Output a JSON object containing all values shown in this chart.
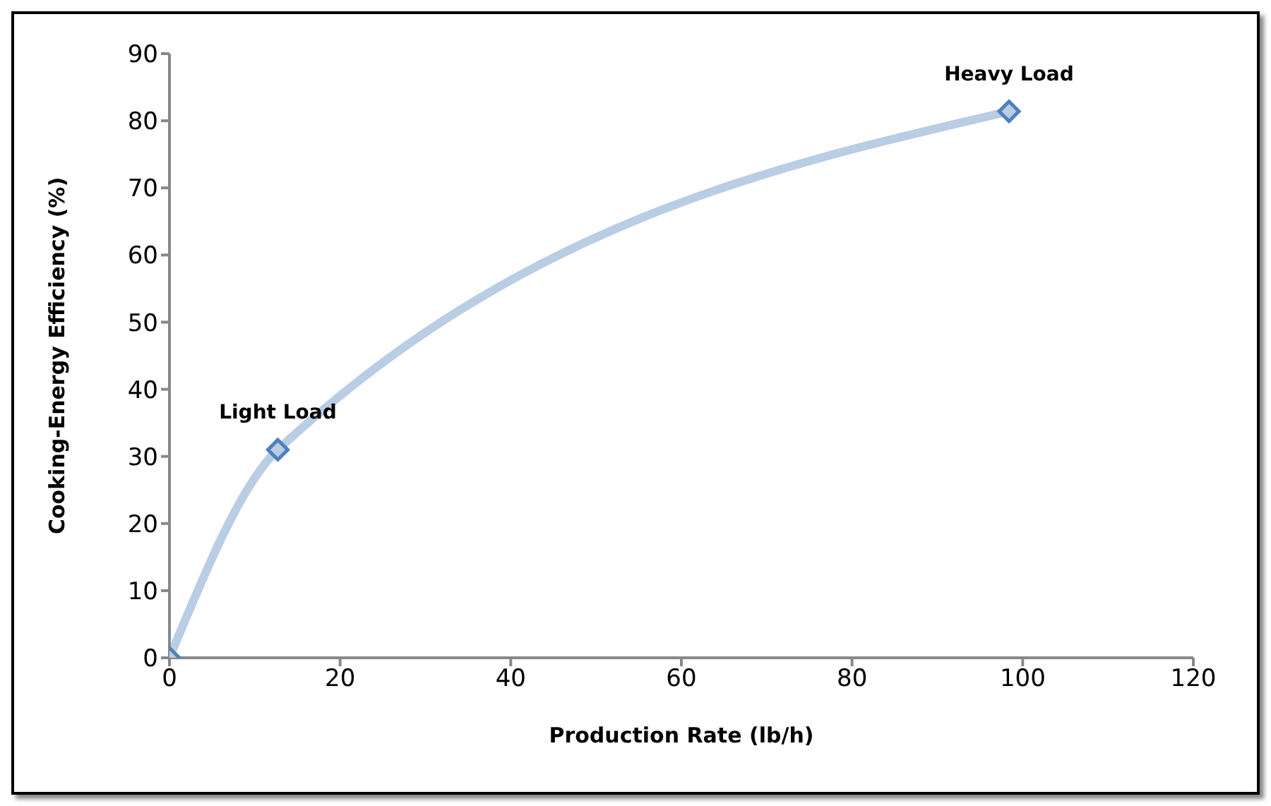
{
  "chart_data": {
    "type": "line",
    "xlabel": "Production Rate (lb/h)",
    "ylabel": "Cooking-Energy Efficiency (%)",
    "x": [
      0,
      12.7,
      98.4
    ],
    "series": [
      {
        "color": "#b9cde5",
        "values": [
          0,
          31,
          81.4
        ]
      }
    ],
    "xlim": [
      0,
      120
    ],
    "xticks": [
      0,
      20,
      40,
      60,
      80,
      100,
      120
    ],
    "ylim": [
      0,
      90
    ],
    "yticks": [
      0,
      10,
      20,
      30,
      40,
      50,
      60,
      70,
      80,
      90
    ],
    "marker": "diamond",
    "annotations": [
      {
        "text": "Light Load",
        "x": 12.7,
        "y": 31
      },
      {
        "text": "Heavy Load",
        "x": 98.4,
        "y": 81.4
      }
    ]
  }
}
